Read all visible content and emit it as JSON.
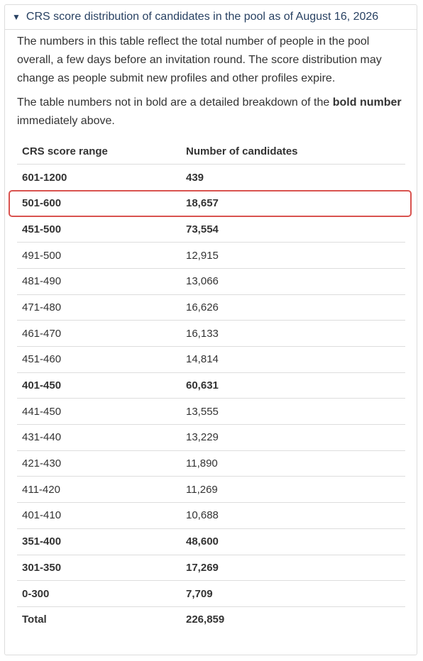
{
  "details": {
    "summary": "CRS score distribution of candidates in the pool as of August 16, 2026",
    "open": true
  },
  "paragraphs": [
    {
      "parts": [
        {
          "text": "The numbers in this table reflect the total number of people in the pool overall, a few days before an invitation round. The score distribution may change as people submit new profiles and other profiles expire.",
          "bold": false
        }
      ]
    },
    {
      "parts": [
        {
          "text": "The table numbers not in bold are a detailed breakdown of the ",
          "bold": false
        },
        {
          "text": "bold number",
          "bold": true
        },
        {
          "text": " immediately above.",
          "bold": false
        }
      ]
    }
  ],
  "table": {
    "headers": [
      "CRS score range",
      "Number of candidates"
    ],
    "rows": [
      {
        "range": "601-1200",
        "count": "439",
        "bold": true
      },
      {
        "range": "501-600",
        "count": "18,657",
        "bold": true,
        "highlighted": true
      },
      {
        "range": "451-500",
        "count": "73,554",
        "bold": true
      },
      {
        "range": "491-500",
        "count": "12,915",
        "bold": false
      },
      {
        "range": "481-490",
        "count": "13,066",
        "bold": false
      },
      {
        "range": "471-480",
        "count": "16,626",
        "bold": false
      },
      {
        "range": "461-470",
        "count": "16,133",
        "bold": false
      },
      {
        "range": "451-460",
        "count": "14,814",
        "bold": false
      },
      {
        "range": "401-450",
        "count": "60,631",
        "bold": true
      },
      {
        "range": "441-450",
        "count": "13,555",
        "bold": false
      },
      {
        "range": "431-440",
        "count": "13,229",
        "bold": false
      },
      {
        "range": "421-430",
        "count": "11,890",
        "bold": false
      },
      {
        "range": "411-420",
        "count": "11,269",
        "bold": false
      },
      {
        "range": "401-410",
        "count": "10,688",
        "bold": false
      },
      {
        "range": "351-400",
        "count": "48,600",
        "bold": true
      },
      {
        "range": "301-350",
        "count": "17,269",
        "bold": true
      },
      {
        "range": "0-300",
        "count": "7,709",
        "bold": true
      },
      {
        "range": "Total",
        "count": "226,859",
        "bold": true
      }
    ]
  }
}
